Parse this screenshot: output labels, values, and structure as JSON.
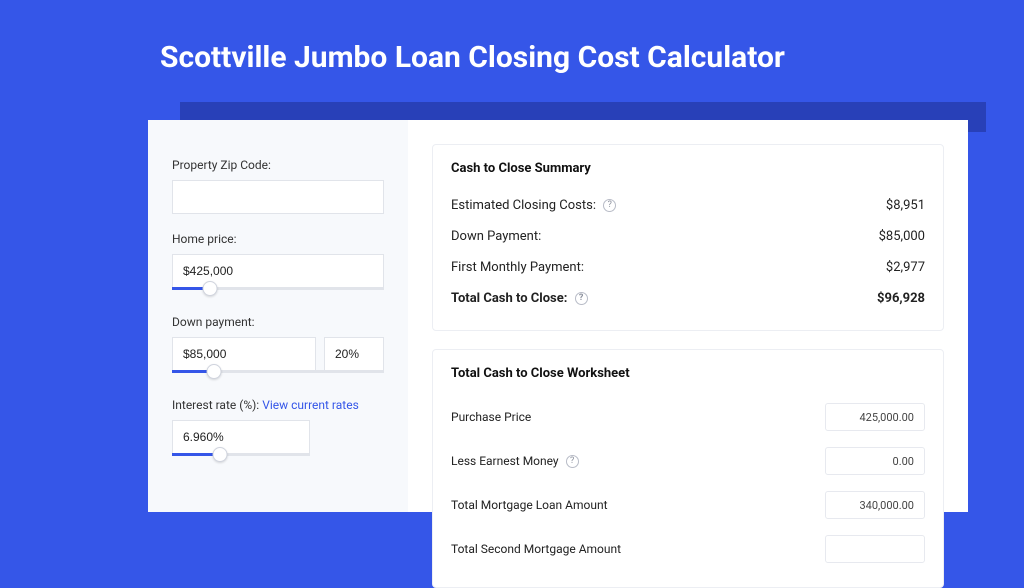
{
  "colors": {
    "page_bg": "#3556e8",
    "shadow_bar": "#2840b8",
    "card_bg": "#ffffff",
    "left_bg": "#f7f9fc",
    "input_border": "#e1e4ea",
    "slider_fill": "#3556e8",
    "link": "#3556e8",
    "panel_border": "#eceef3",
    "help_border": "#b8bcc7",
    "help_text": "#8a8f9c"
  },
  "title": "Scottville Jumbo Loan Closing Cost Calculator",
  "inputs": {
    "zip": {
      "label": "Property Zip Code:",
      "value": ""
    },
    "home_price": {
      "label": "Home price:",
      "value": "$425,000",
      "slider_pct": 18
    },
    "down_payment": {
      "label": "Down payment:",
      "value": "$85,000",
      "pct_value": "20%",
      "slider_pct": 20
    },
    "interest_rate": {
      "label_prefix": "Interest rate (%): ",
      "link_text": "View current rates",
      "value": "6.960%",
      "slider_pct": 35
    }
  },
  "summary": {
    "title": "Cash to Close Summary",
    "rows": [
      {
        "label": "Estimated Closing Costs:",
        "has_help": true,
        "value": "$8,951",
        "bold": false
      },
      {
        "label": "Down Payment:",
        "has_help": false,
        "value": "$85,000",
        "bold": false
      },
      {
        "label": "First Monthly Payment:",
        "has_help": false,
        "value": "$2,977",
        "bold": false
      },
      {
        "label": "Total Cash to Close:",
        "has_help": true,
        "value": "$96,928",
        "bold": true
      }
    ]
  },
  "worksheet": {
    "title": "Total Cash to Close Worksheet",
    "rows": [
      {
        "label": "Purchase Price",
        "has_help": false,
        "value": "425,000.00"
      },
      {
        "label": "Less Earnest Money",
        "has_help": true,
        "value": "0.00"
      },
      {
        "label": "Total Mortgage Loan Amount",
        "has_help": false,
        "value": "340,000.00"
      },
      {
        "label": "Total Second Mortgage Amount",
        "has_help": false,
        "value": ""
      }
    ]
  }
}
